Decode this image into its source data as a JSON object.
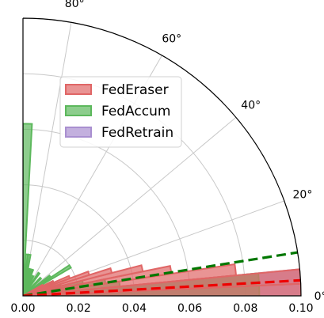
{
  "chart_data": {
    "type": "polar-bar",
    "r_ticks": [
      "0.00",
      "0.02",
      "0.04",
      "0.06",
      "0.08",
      "0.10"
    ],
    "r_lim": [
      0,
      0.1
    ],
    "theta_ticks": [
      "0°",
      "20°",
      "40°",
      "60°",
      "80°"
    ],
    "theta_lim_deg": [
      0,
      90
    ],
    "grid": true,
    "legend_position": "upper-left",
    "colors": {
      "FedEraser": "#e06666",
      "FedAccum": "#5cb85c",
      "FedRetrain": "#a98fd0",
      "FedEraser_line": "#ee0000",
      "FedAccum_line": "#007700"
    },
    "series": [
      {
        "name": "FedEraser",
        "bars": [
          {
            "theta_deg": 1.0,
            "r": 0.1
          },
          {
            "theta_deg": 4.0,
            "r": 0.1
          },
          {
            "theta_deg": 7.0,
            "r": 0.077
          },
          {
            "theta_deg": 10.0,
            "r": 0.054
          },
          {
            "theta_deg": 13.0,
            "r": 0.044
          },
          {
            "theta_deg": 16.0,
            "r": 0.033
          },
          {
            "theta_deg": 19.0,
            "r": 0.025
          },
          {
            "theta_deg": 22.0,
            "r": 0.018
          },
          {
            "theta_deg": 25.0,
            "r": 0.012
          },
          {
            "theta_deg": 28.0,
            "r": 0.008
          }
        ],
        "mean_angle_deg": 3.2
      },
      {
        "name": "FedAccum",
        "bars": [
          {
            "theta_deg": 1.0,
            "r": 0.085
          },
          {
            "theta_deg": 4.0,
            "r": 0.085
          },
          {
            "theta_deg": 7.0,
            "r": 0.035
          },
          {
            "theta_deg": 10.0,
            "r": 0.03
          },
          {
            "theta_deg": 13.0,
            "r": 0.022
          },
          {
            "theta_deg": 16.0,
            "r": 0.014
          },
          {
            "theta_deg": 19.0,
            "r": 0.01
          },
          {
            "theta_deg": 22.0,
            "r": 0.01
          },
          {
            "theta_deg": 25.0,
            "r": 0.012
          },
          {
            "theta_deg": 28.0,
            "r": 0.008
          },
          {
            "theta_deg": 32.0,
            "r": 0.02
          },
          {
            "theta_deg": 36.0,
            "r": 0.012
          },
          {
            "theta_deg": 45.0,
            "r": 0.009
          },
          {
            "theta_deg": 55.0,
            "r": 0.01
          },
          {
            "theta_deg": 63.0,
            "r": 0.008
          },
          {
            "theta_deg": 70.0,
            "r": 0.01
          },
          {
            "theta_deg": 76.0,
            "r": 0.01
          },
          {
            "theta_deg": 81.0,
            "r": 0.015
          },
          {
            "theta_deg": 85.0,
            "r": 0.015
          },
          {
            "theta_deg": 88.5,
            "r": 0.062
          }
        ],
        "mean_angle_deg": 9.0
      },
      {
        "name": "FedRetrain",
        "bars": [
          {
            "theta_deg": 1.0,
            "r": 0.1
          },
          {
            "theta_deg": 4.0,
            "r": 0.1
          }
        ],
        "mean_angle_deg": 0
      }
    ]
  }
}
